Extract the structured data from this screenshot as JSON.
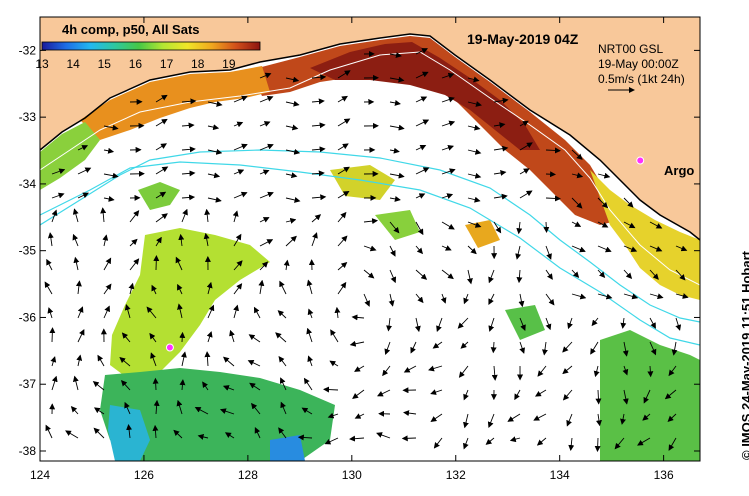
{
  "map": {
    "product_title": "4h comp, p50, All Sats",
    "date_title": "19-May-2019 04Z",
    "info_line1": "NRT00 GSL",
    "info_line2": "19-May 00:00Z",
    "info_line3": "0.5m/s (1kt 24h)",
    "argo_label": "Argo",
    "credit": "© IMOS 24-May-2019 11:51 Hobart",
    "colorbar": {
      "min": 13,
      "max": 20,
      "ticks": [
        "13",
        "14",
        "15",
        "16",
        "17",
        "18",
        "19"
      ],
      "colors": [
        "#1a1a9c",
        "#1e6ee6",
        "#22b8f0",
        "#2ec8a0",
        "#46c846",
        "#b4e632",
        "#f0e628",
        "#f0a81e",
        "#d2501a",
        "#8c1410"
      ]
    },
    "lon_axis": {
      "min": 124,
      "max": 136.7,
      "ticks": [
        124,
        126,
        128,
        130,
        132,
        134,
        136
      ],
      "labels": [
        "124",
        "126",
        "128",
        "130",
        "132",
        "134",
        "136"
      ]
    },
    "lat_axis": {
      "min": -38.15,
      "max": -31.5,
      "ticks": [
        -32,
        -33,
        -34,
        -35,
        -36,
        -37,
        -38
      ],
      "labels": [
        "-32",
        "-33",
        "-34",
        "-35",
        "-36",
        "-37",
        "-38"
      ]
    },
    "argo_floats": [
      {
        "lon": 135.55,
        "lat": -33.65
      },
      {
        "lon": 126.5,
        "lat": -36.45
      }
    ],
    "land_color": "#f8c89a",
    "no_data_color": "#ffffff"
  }
}
